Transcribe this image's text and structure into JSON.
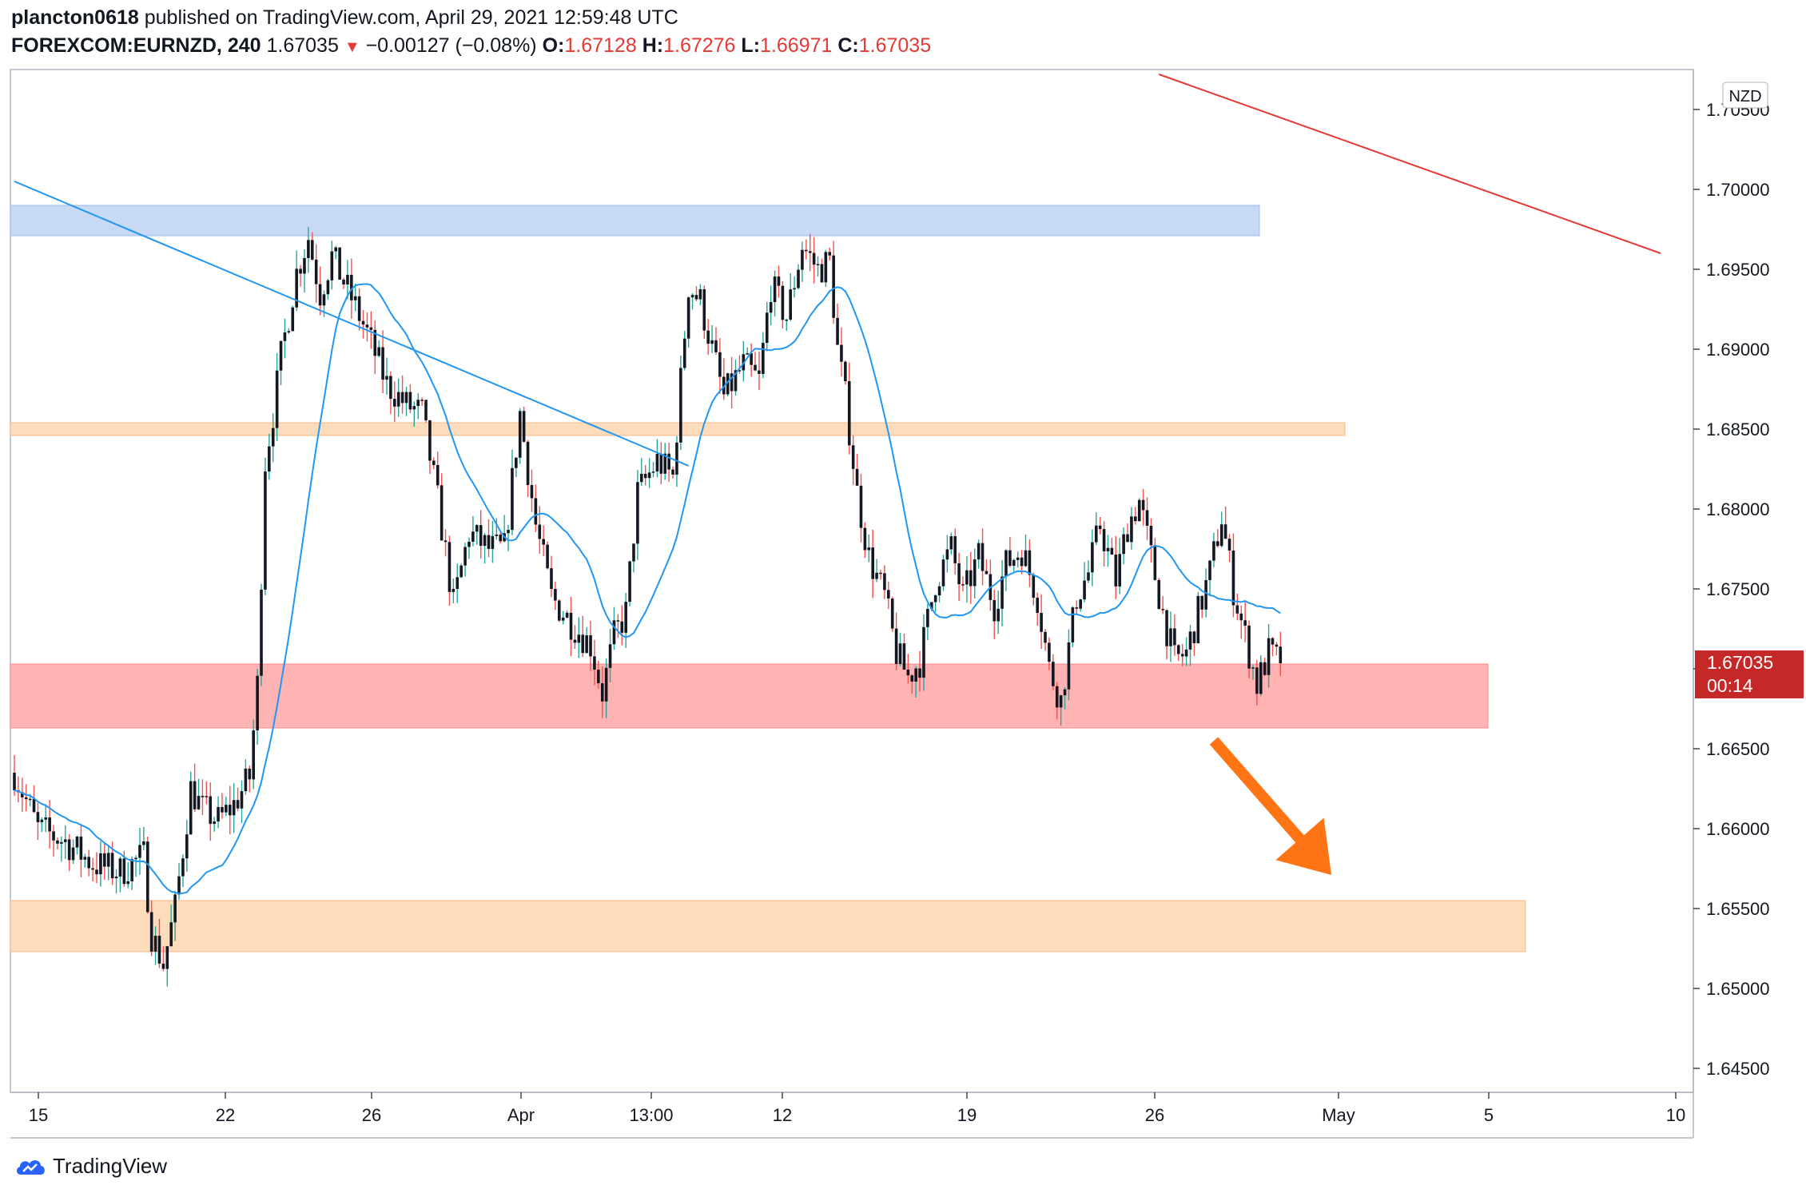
{
  "header": {
    "author": "plancton0618",
    "published_text": "published on TradingView.com, April 29, 2021 12:59:48 UTC",
    "symbol": "FOREXCOM:EURNZD, 240",
    "last": "1.67035",
    "change": "−0.00127 (−0.08%)",
    "o_label": "O:",
    "o_value": "1.67128",
    "h_label": "H:",
    "h_value": "1.67276",
    "l_label": "L:",
    "l_value": "1.66971",
    "c_label": "C:",
    "c_value": "1.67035",
    "down_arrow": "▼"
  },
  "currency_badge": "NZD",
  "price_tag": {
    "price": "1.67035",
    "countdown": "00:14",
    "value": 1.67035
  },
  "brand": {
    "name": "TradingView",
    "icon": "tradingview-cloud-icon"
  },
  "colors": {
    "bull": "#26a69a",
    "bear": "#ef5350",
    "candle_body": "#131722",
    "ma": "#2196f3",
    "red_zone": "#ffb3b3",
    "orange_zone": "#fcdcbb",
    "blue_zone": "#c7d9f5",
    "arrow": "#ff7415",
    "resistance_line": "#e53935"
  },
  "chart_data": {
    "type": "candlestick",
    "timeframe": "240",
    "x_ticks": [
      "15",
      "22",
      "26",
      "Apr",
      "13:00",
      "12",
      "19",
      "26",
      "May",
      "5",
      "10"
    ],
    "y_ticks": [
      "1.70500",
      "1.70000",
      "1.69500",
      "1.69000",
      "1.68500",
      "1.68000",
      "1.67500",
      "1.67000",
      "1.66500",
      "1.66000",
      "1.65500",
      "1.65000",
      "1.64500"
    ],
    "ylim": [
      1.6435,
      1.7075
    ],
    "zones": [
      {
        "name": "resistance-zone-blue",
        "low": 1.6971,
        "high": 1.699
      },
      {
        "name": "resistance-zone-orange-mid",
        "low": 1.6846,
        "high": 1.6854
      },
      {
        "name": "support-zone-red",
        "low": 1.6663,
        "high": 1.6703
      },
      {
        "name": "target-zone-orange",
        "low": 1.6523,
        "high": 1.6555
      }
    ],
    "trendlines": [
      {
        "name": "descending-trendline-blue",
        "from": {
          "bar": 0,
          "price": 1.7005
        },
        "to": {
          "bar": 172,
          "price": 1.6827
        }
      },
      {
        "name": "descending-trendline-red",
        "from": {
          "bar": 292,
          "price": 1.7072
        },
        "to": {
          "bar": 420,
          "price": 1.696
        }
      }
    ],
    "arrow": {
      "name": "bearish-projection-arrow",
      "from": {
        "bar": 306,
        "price": 1.6655
      },
      "to": {
        "bar": 336,
        "price": 1.6571
      }
    },
    "ma_period": 20,
    "price_path": [
      [
        0,
        1.6635
      ],
      [
        6,
        1.66
      ],
      [
        13,
        1.6592
      ],
      [
        20,
        1.6578
      ],
      [
        27,
        1.6573
      ],
      [
        33,
        1.6583
      ],
      [
        35,
        1.6534
      ],
      [
        38,
        1.6515
      ],
      [
        41,
        1.655
      ],
      [
        45,
        1.6625
      ],
      [
        48,
        1.6612
      ],
      [
        52,
        1.6605
      ],
      [
        56,
        1.6615
      ],
      [
        60,
        1.6632
      ],
      [
        62,
        1.669
      ],
      [
        64,
        1.683
      ],
      [
        66,
        1.686
      ],
      [
        68,
        1.6895
      ],
      [
        72,
        1.6948
      ],
      [
        75,
        1.697
      ],
      [
        78,
        1.6935
      ],
      [
        81,
        1.6958
      ],
      [
        86,
        1.6932
      ],
      [
        90,
        1.691
      ],
      [
        95,
        1.6878
      ],
      [
        100,
        1.6865
      ],
      [
        104,
        1.686
      ],
      [
        108,
        1.6805
      ],
      [
        112,
        1.674
      ],
      [
        116,
        1.6785
      ],
      [
        121,
        1.6775
      ],
      [
        125,
        1.6775
      ],
      [
        129,
        1.686
      ],
      [
        133,
        1.679
      ],
      [
        137,
        1.6745
      ],
      [
        141,
        1.6732
      ],
      [
        147,
        1.6715
      ],
      [
        150,
        1.6685
      ],
      [
        153,
        1.672
      ],
      [
        156,
        1.6735
      ],
      [
        159,
        1.681
      ],
      [
        164,
        1.683
      ],
      [
        168,
        1.682
      ],
      [
        170,
        1.688
      ],
      [
        172,
        1.694
      ],
      [
        175,
        1.693
      ],
      [
        178,
        1.69
      ],
      [
        181,
        1.687
      ],
      [
        186,
        1.689
      ],
      [
        190,
        1.688
      ],
      [
        193,
        1.694
      ],
      [
        197,
        1.692
      ],
      [
        201,
        1.6965
      ],
      [
        205,
        1.695
      ],
      [
        208,
        1.6955
      ],
      [
        210,
        1.69
      ],
      [
        212,
        1.687
      ],
      [
        215,
        1.681
      ],
      [
        218,
        1.677
      ],
      [
        222,
        1.6745
      ],
      [
        225,
        1.671
      ],
      [
        228,
        1.6695
      ],
      [
        231,
        1.6705
      ],
      [
        235,
        1.6755
      ],
      [
        239,
        1.6775
      ],
      [
        242,
        1.6745
      ],
      [
        246,
        1.677
      ],
      [
        250,
        1.674
      ],
      [
        253,
        1.6765
      ],
      [
        257,
        1.6775
      ],
      [
        261,
        1.6745
      ],
      [
        264,
        1.67
      ],
      [
        267,
        1.668
      ],
      [
        271,
        1.6745
      ],
      [
        274,
        1.676
      ],
      [
        277,
        1.679
      ],
      [
        281,
        1.6755
      ],
      [
        284,
        1.679
      ],
      [
        287,
        1.6805
      ],
      [
        290,
        1.677
      ],
      [
        293,
        1.6735
      ],
      [
        296,
        1.6705
      ],
      [
        299,
        1.671
      ],
      [
        302,
        1.6735
      ],
      [
        305,
        1.676
      ],
      [
        308,
        1.6795
      ],
      [
        311,
        1.675
      ],
      [
        314,
        1.672
      ],
      [
        317,
        1.669
      ],
      [
        320,
        1.671
      ],
      [
        323,
        1.67035
      ]
    ],
    "candle_count": 324
  }
}
